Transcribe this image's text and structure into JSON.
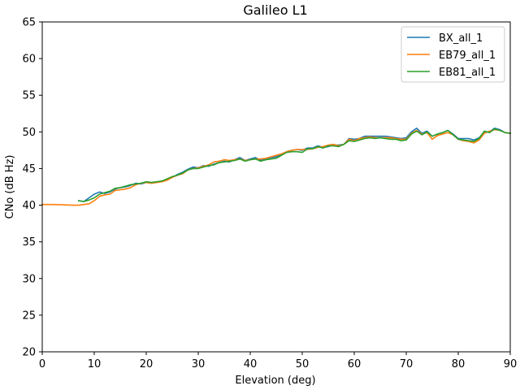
{
  "chart_data": {
    "type": "line",
    "title": "Galileo L1",
    "xlabel": "Elevation (deg)",
    "ylabel": "CNo (dB Hz)",
    "xlim": [
      0,
      90
    ],
    "ylim": [
      20,
      65
    ],
    "xticks": [
      0,
      10,
      20,
      30,
      40,
      50,
      60,
      70,
      80,
      90
    ],
    "yticks": [
      20,
      25,
      30,
      35,
      40,
      45,
      50,
      55,
      60,
      65
    ],
    "grid": false,
    "legend_position": "top-right",
    "series": [
      {
        "name": "BX_all_1",
        "color": "#1f77b4",
        "x": [
          7,
          8,
          9,
          10,
          11,
          12,
          13,
          14,
          15,
          16,
          17,
          18,
          19,
          20,
          21,
          22,
          23,
          24,
          25,
          26,
          27,
          28,
          29,
          30,
          31,
          32,
          33,
          34,
          35,
          36,
          37,
          38,
          39,
          40,
          41,
          42,
          43,
          44,
          45,
          46,
          47,
          48,
          49,
          50,
          51,
          52,
          53,
          54,
          55,
          56,
          57,
          58,
          59,
          60,
          61,
          62,
          63,
          64,
          65,
          66,
          67,
          68,
          69,
          70,
          71,
          72,
          73,
          74,
          75,
          76,
          77,
          78,
          79,
          80,
          81,
          82,
          83,
          84,
          85,
          86,
          87,
          88,
          89,
          90
        ],
        "y": [
          40.6,
          40.5,
          41.0,
          41.5,
          41.8,
          41.6,
          41.8,
          42.2,
          42.4,
          42.5,
          42.7,
          43.0,
          42.9,
          43.1,
          43.0,
          43.1,
          43.3,
          43.5,
          43.8,
          44.2,
          44.5,
          44.9,
          45.2,
          45.1,
          45.4,
          45.3,
          45.6,
          45.8,
          46.0,
          45.9,
          46.2,
          46.5,
          46.1,
          46.3,
          46.5,
          46.1,
          46.3,
          46.5,
          46.6,
          46.9,
          47.3,
          47.5,
          47.6,
          47.5,
          47.8,
          47.8,
          48.1,
          47.9,
          48.0,
          48.2,
          48.2,
          48.3,
          49.1,
          49.0,
          49.1,
          49.4,
          49.4,
          49.4,
          49.4,
          49.4,
          49.3,
          49.2,
          49.1,
          49.2,
          50.0,
          50.5,
          49.8,
          50.1,
          49.4,
          49.7,
          49.9,
          50.2,
          49.7,
          49.1,
          49.1,
          49.1,
          48.9,
          49.2,
          50.0,
          50.0,
          50.5,
          50.3,
          49.9,
          49.8
        ]
      },
      {
        "name": "EB79_all_1",
        "color": "#ff7f0e",
        "x": [
          0,
          2,
          4,
          6,
          7,
          8,
          9,
          10,
          11,
          12,
          13,
          14,
          15,
          16,
          17,
          18,
          19,
          20,
          21,
          22,
          23,
          24,
          25,
          26,
          27,
          28,
          29,
          30,
          31,
          32,
          33,
          34,
          35,
          36,
          37,
          38,
          39,
          40,
          41,
          42,
          43,
          44,
          45,
          46,
          47,
          48,
          49,
          50,
          51,
          52,
          53,
          54,
          55,
          56,
          57,
          58,
          59,
          60,
          61,
          62,
          63,
          64,
          65,
          66,
          67,
          68,
          69,
          70,
          71,
          72,
          73,
          74,
          75,
          76,
          77,
          78,
          79,
          80,
          81,
          82,
          83,
          84,
          85,
          86,
          87,
          88,
          89,
          90
        ],
        "y": [
          40.1,
          40.1,
          40.05,
          40.0,
          40.0,
          40.1,
          40.2,
          40.6,
          41.2,
          41.4,
          41.5,
          42.0,
          42.1,
          42.2,
          42.4,
          42.8,
          43.0,
          43.1,
          43.0,
          43.1,
          43.2,
          43.4,
          43.8,
          44.1,
          44.3,
          44.8,
          45.0,
          45.1,
          45.3,
          45.5,
          45.9,
          46.0,
          46.2,
          46.1,
          46.2,
          46.3,
          46.1,
          46.2,
          46.3,
          46.3,
          46.4,
          46.6,
          46.8,
          47.0,
          47.3,
          47.5,
          47.6,
          47.6,
          47.6,
          47.7,
          47.9,
          48.0,
          48.2,
          48.3,
          48.1,
          48.3,
          49.0,
          48.8,
          49.1,
          49.2,
          49.3,
          49.2,
          49.2,
          49.2,
          49.2,
          49.1,
          49.0,
          49.0,
          49.8,
          50.2,
          49.7,
          49.9,
          49.0,
          49.5,
          49.7,
          49.9,
          49.6,
          49.0,
          48.8,
          48.7,
          48.5,
          48.9,
          49.8,
          50.1,
          50.3,
          50.2,
          49.9,
          49.8
        ]
      },
      {
        "name": "EB81_all_1",
        "color": "#2ca02c",
        "x": [
          7,
          8,
          9,
          10,
          11,
          12,
          13,
          14,
          15,
          16,
          17,
          18,
          19,
          20,
          21,
          22,
          23,
          24,
          25,
          26,
          27,
          28,
          29,
          30,
          31,
          32,
          33,
          34,
          35,
          36,
          37,
          38,
          39,
          40,
          41,
          42,
          43,
          44,
          45,
          46,
          47,
          48,
          49,
          50,
          51,
          52,
          53,
          54,
          55,
          56,
          57,
          58,
          59,
          60,
          61,
          62,
          63,
          64,
          65,
          66,
          67,
          68,
          69,
          70,
          71,
          72,
          73,
          74,
          75,
          76,
          77,
          78,
          79,
          80,
          81,
          82,
          83,
          84,
          85,
          86,
          87,
          88,
          89,
          90
        ],
        "y": [
          40.6,
          40.5,
          40.7,
          41.0,
          41.5,
          41.7,
          41.9,
          42.3,
          42.4,
          42.6,
          42.8,
          42.9,
          43.0,
          43.2,
          43.1,
          43.2,
          43.3,
          43.6,
          43.9,
          44.1,
          44.4,
          44.8,
          45.0,
          45.0,
          45.2,
          45.4,
          45.5,
          45.8,
          45.9,
          46.0,
          46.1,
          46.3,
          46.0,
          46.2,
          46.3,
          46.0,
          46.2,
          46.3,
          46.4,
          46.8,
          47.2,
          47.3,
          47.3,
          47.2,
          47.7,
          47.7,
          48.0,
          47.8,
          48.1,
          48.1,
          48.0,
          48.3,
          48.8,
          48.7,
          48.9,
          49.1,
          49.2,
          49.1,
          49.2,
          49.1,
          49.0,
          49.0,
          48.8,
          48.9,
          49.7,
          50.1,
          49.6,
          50.0,
          49.4,
          49.7,
          49.9,
          50.2,
          49.6,
          49.0,
          48.9,
          48.8,
          48.7,
          49.1,
          50.1,
          49.9,
          50.4,
          50.2,
          49.9,
          49.8
        ]
      }
    ]
  }
}
